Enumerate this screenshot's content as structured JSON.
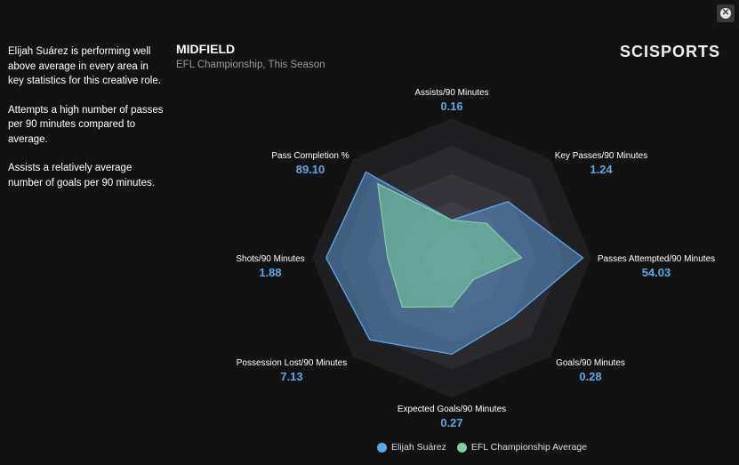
{
  "summary": [
    "Elijah Suárez is performing well above average in every area in key statistics for this creative role.",
    "Attempts a high number of passes per 90 minutes compared to average.",
    "Assists a relatively average number of goals per 90 minutes."
  ],
  "logo": "SCISPORTS",
  "close_icon": "close-circle-icon",
  "chart_data": {
    "type": "radar",
    "title": "MIDFIELD",
    "subtitle": "EFL Championship, This Season",
    "axes": [
      {
        "label": "Assists/90 Minutes",
        "value": "0.16"
      },
      {
        "label": "Key Passes/90 Minutes",
        "value": "1.24"
      },
      {
        "label": "Passes Attempted/90 Minutes",
        "value": "54.03"
      },
      {
        "label": "Goals/90 Minutes",
        "value": "0.28"
      },
      {
        "label": "Expected Goals/90 Minutes",
        "value": "0.27"
      },
      {
        "label": "Possession Lost/90 Minutes",
        "value": "7.13"
      },
      {
        "label": "Shots/90 Minutes",
        "value": "1.88"
      },
      {
        "label": "Pass Completion %",
        "value": "89.10"
      }
    ],
    "rings": 5,
    "series": [
      {
        "name": "Elijah Suárez",
        "color": "#5aa8e8",
        "values": [
          0.27,
          0.57,
          0.94,
          0.61,
          0.69,
          0.83,
          0.9,
          0.87
        ]
      },
      {
        "name": "EFL Championship Average",
        "color": "#7fcf9f",
        "values": [
          0.27,
          0.35,
          0.5,
          0.22,
          0.35,
          0.5,
          0.46,
          0.75
        ]
      }
    ],
    "legend_position": "bottom"
  }
}
